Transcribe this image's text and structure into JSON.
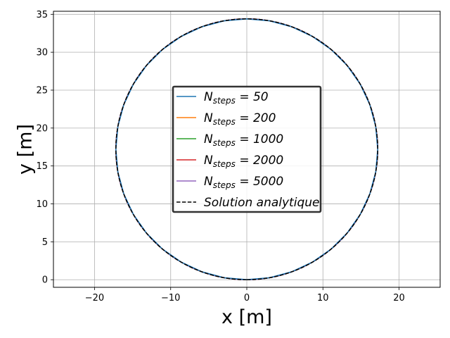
{
  "chart_data": {
    "type": "line",
    "title": "",
    "xlabel": "x [m]",
    "ylabel": "y [m]",
    "xlim": [
      -25.4,
      25.4
    ],
    "ylim": [
      -1,
      35.4
    ],
    "xticks": [
      -20,
      -10,
      0,
      10,
      20
    ],
    "yticks": [
      0,
      5,
      10,
      15,
      20,
      25,
      30,
      35
    ],
    "xtick_labels": [
      "−20",
      "−10",
      "0",
      "10",
      "20"
    ],
    "ytick_labels": [
      "0",
      "5",
      "10",
      "15",
      "20",
      "25",
      "30",
      "35"
    ],
    "grid": true,
    "legend_position": "center",
    "circle": {
      "center_x": 0,
      "center_y": 17.2,
      "radius": 17.2
    },
    "series": [
      {
        "name_main": "N",
        "name_sub": "steps",
        "name_rest": " = 50",
        "color": "#1f77b4",
        "dash": "solid",
        "steps": 50
      },
      {
        "name_main": "N",
        "name_sub": "steps",
        "name_rest": " = 200",
        "color": "#ff7f0e",
        "dash": "solid",
        "steps": 200
      },
      {
        "name_main": "N",
        "name_sub": "steps",
        "name_rest": " = 1000",
        "color": "#2ca02c",
        "dash": "solid",
        "steps": 1000
      },
      {
        "name_main": "N",
        "name_sub": "steps",
        "name_rest": " = 2000",
        "color": "#d62728",
        "dash": "solid",
        "steps": 2000
      },
      {
        "name_main": "N",
        "name_sub": "steps",
        "name_rest": " = 5000",
        "color": "#9467bd",
        "dash": "solid",
        "steps": 5000
      },
      {
        "name_main": "Solution analytique",
        "name_sub": "",
        "name_rest": "",
        "color": "#000000",
        "dash": "dashed",
        "steps": 0
      }
    ]
  }
}
